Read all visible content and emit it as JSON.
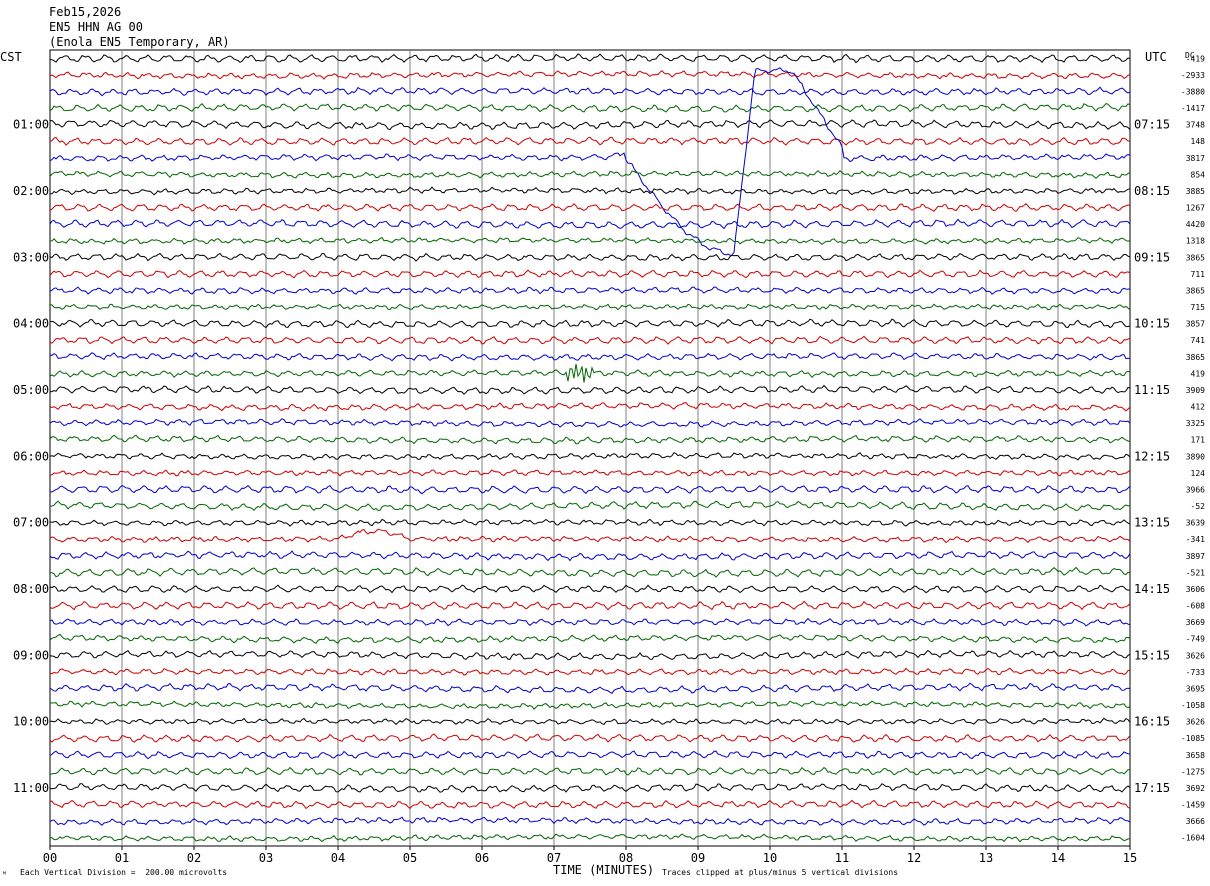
{
  "header": {
    "date": "Feb15,2026",
    "channel": "EN5 HHN AG 00",
    "station": "(Enola EN5 Temporary, AR)"
  },
  "left_tz": "CST",
  "right_tz": "UTC",
  "dc_label": "DC",
  "footer": {
    "scale_note": "Each Vertical Division =  200.00 microvolts",
    "xlabel": "TIME (MINUTES)",
    "clip_note": "Traces clipped at plus/minus 5 vertical divisions",
    "corner_mark": "ᴹ"
  },
  "colors": {
    "trace_cycle": [
      "#000000",
      "#cc0000",
      "#0000cc",
      "#006600"
    ],
    "grid": "#808080"
  },
  "chart_data": {
    "type": "line",
    "title": "EN5 HHN AG 00",
    "xlabel": "TIME (MINUTES)",
    "xlim": [
      0,
      15
    ],
    "x_ticks": [
      "00",
      "01",
      "02",
      "03",
      "04",
      "05",
      "06",
      "07",
      "08",
      "09",
      "10",
      "11",
      "12",
      "13",
      "14",
      "15"
    ],
    "trace_count": 48,
    "trace_minutes": 15,
    "left_hour_labels": [
      "01:00",
      "02:00",
      "03:00",
      "04:00",
      "05:00",
      "06:00",
      "07:00",
      "08:00",
      "09:00",
      "10:00",
      "11:00"
    ],
    "right_hour_labels": [
      "07:15",
      "08:15",
      "09:15",
      "10:15",
      "11:15",
      "12:15",
      "13:15",
      "14:15",
      "15:15",
      "16:15",
      "17:15"
    ],
    "hour_label_every_n_traces": 4,
    "first_labeled_trace": 4,
    "dc_offsets": [
      "-419",
      "-2933",
      "-3880",
      "-1417",
      "3748",
      "148",
      "3817",
      "854",
      "3885",
      "1267",
      "4420",
      "1318",
      "3865",
      "711",
      "3865",
      "715",
      "3857",
      "741",
      "3865",
      "419",
      "3909",
      "412",
      "3325",
      "171",
      "3890",
      "124",
      "3966",
      "-52",
      "3639",
      "-341",
      "3897",
      "-521",
      "3606",
      "-608",
      "3669",
      "-749",
      "3626",
      "-733",
      "3695",
      "-1058",
      "3626",
      "-1085",
      "3658",
      "-1275",
      "3692",
      "-1459",
      "3666",
      "-1604"
    ],
    "events": [
      {
        "description": "long-period offset / clipped excursion",
        "trace_index": 6,
        "start_min": 7.0,
        "end_min": 11.0
      },
      {
        "description": "high-frequency burst",
        "trace_index": 19,
        "start_min": 7.1,
        "end_min": 7.6
      },
      {
        "description": "low-frequency swell",
        "trace_index": 29,
        "start_min": 4.0,
        "end_min": 5.0
      }
    ]
  }
}
